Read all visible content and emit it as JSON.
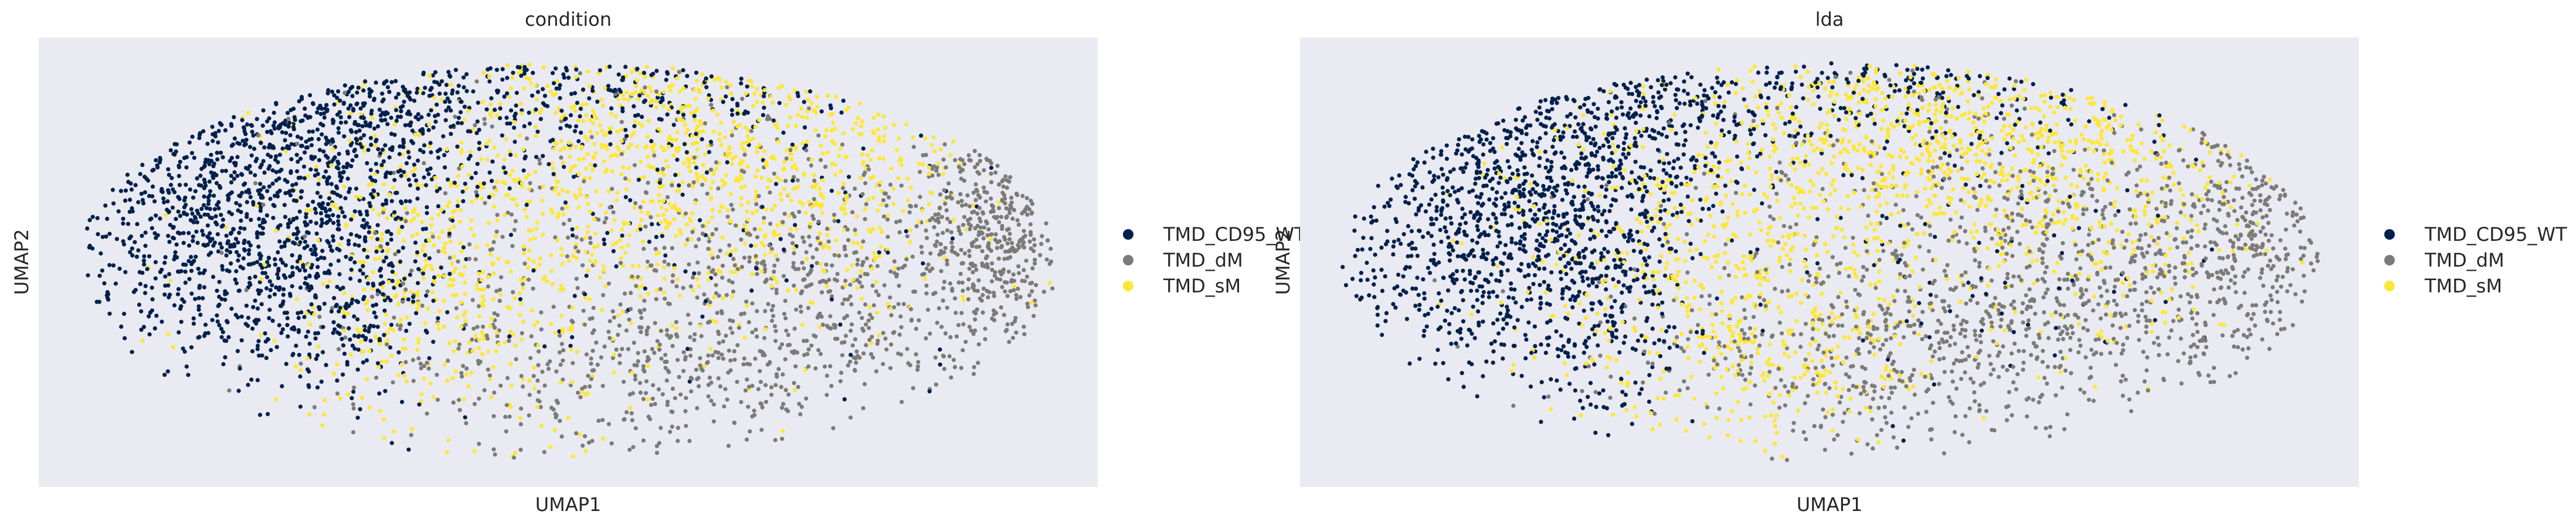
{
  "chart_data": [
    {
      "type": "scatter",
      "title": "condition",
      "xlabel": "UMAP1",
      "ylabel": "UMAP2",
      "grid": false,
      "axis_ticks": false,
      "legend_placement": "right",
      "background_color": "#eaeaf2",
      "series": [
        {
          "name": "TMD_CD95_WT",
          "color": "#00204c",
          "clusters": [
            {
              "cx": -5.2,
              "cy": 0.3,
              "sx": 1.4,
              "sy": 1.2,
              "n": 900
            },
            {
              "cx": -3.2,
              "cy": 2.0,
              "sx": 1.3,
              "sy": 0.9,
              "n": 420
            },
            {
              "cx": -3.6,
              "cy": -0.8,
              "sx": 0.8,
              "sy": 0.9,
              "n": 220
            },
            {
              "cx": 0.5,
              "cy": 2.6,
              "sx": 2.5,
              "sy": 0.6,
              "n": 260
            },
            {
              "cx": 2.0,
              "cy": 0.5,
              "sx": 2.5,
              "sy": 1.5,
              "n": 120
            }
          ]
        },
        {
          "name": "TMD_dM",
          "color": "#7c7b78",
          "clusters": [
            {
              "cx": 6.7,
              "cy": 0.3,
              "sx": 0.6,
              "sy": 1.1,
              "n": 380
            },
            {
              "cx": 4.2,
              "cy": -0.8,
              "sx": 1.5,
              "sy": 1.1,
              "n": 420
            },
            {
              "cx": 0.8,
              "cy": -1.8,
              "sx": 2.2,
              "sy": 0.8,
              "n": 460
            },
            {
              "cx": 1.5,
              "cy": 0.5,
              "sx": 2.5,
              "sy": 1.5,
              "n": 220
            }
          ]
        },
        {
          "name": "TMD_sM",
          "color": "#fde737",
          "clusters": [
            {
              "cx": 1.8,
              "cy": 1.6,
              "sx": 2.2,
              "sy": 1.0,
              "n": 700
            },
            {
              "cx": -1.8,
              "cy": -0.6,
              "sx": 1.6,
              "sy": 1.3,
              "n": 520
            },
            {
              "cx": 3.5,
              "cy": 0.3,
              "sx": 1.5,
              "sy": 1.0,
              "n": 220
            }
          ]
        }
      ],
      "xlim": [
        -8.2,
        8.2
      ],
      "ylim": [
        -3.8,
        3.2
      ]
    },
    {
      "type": "scatter",
      "title": "lda",
      "xlabel": "UMAP1",
      "ylabel": "UMAP2",
      "grid": false,
      "axis_ticks": false,
      "legend_placement": "right",
      "background_color": "#eaeaf2",
      "series": [
        {
          "name": "TMD_CD95_WT",
          "color": "#00204c",
          "clusters": [
            {
              "cx": -5.2,
              "cy": 0.3,
              "sx": 1.3,
              "sy": 1.2,
              "n": 850
            },
            {
              "cx": -3.3,
              "cy": 1.8,
              "sx": 1.2,
              "sy": 0.8,
              "n": 360
            },
            {
              "cx": -3.5,
              "cy": -0.8,
              "sx": 0.7,
              "sy": 0.9,
              "n": 240
            },
            {
              "cx": 0.5,
              "cy": 2.6,
              "sx": 2.5,
              "sy": 0.6,
              "n": 220
            },
            {
              "cx": 2.0,
              "cy": 0.5,
              "sx": 2.5,
              "sy": 1.5,
              "n": 100
            }
          ]
        },
        {
          "name": "TMD_dM",
          "color": "#7c7b78",
          "clusters": [
            {
              "cx": 6.5,
              "cy": 0.3,
              "sx": 0.7,
              "sy": 1.1,
              "n": 300
            },
            {
              "cx": 3.8,
              "cy": -0.6,
              "sx": 1.6,
              "sy": 1.1,
              "n": 460
            },
            {
              "cx": 0.8,
              "cy": -1.8,
              "sx": 2.2,
              "sy": 0.8,
              "n": 460
            },
            {
              "cx": 1.5,
              "cy": 0.5,
              "sx": 2.5,
              "sy": 1.5,
              "n": 240
            }
          ]
        },
        {
          "name": "TMD_sM",
          "color": "#fde737",
          "clusters": [
            {
              "cx": 2.0,
              "cy": 1.8,
              "sx": 2.2,
              "sy": 0.9,
              "n": 760
            },
            {
              "cx": -1.8,
              "cy": -0.5,
              "sx": 1.6,
              "sy": 1.3,
              "n": 480
            },
            {
              "cx": 3.6,
              "cy": 0.0,
              "sx": 1.5,
              "sy": 1.0,
              "n": 220
            },
            {
              "cx": -0.5,
              "cy": -1.8,
              "sx": 1.0,
              "sy": 0.6,
              "n": 140
            }
          ]
        }
      ],
      "xlim": [
        -8.2,
        8.2
      ],
      "ylim": [
        -3.8,
        3.2
      ]
    }
  ]
}
